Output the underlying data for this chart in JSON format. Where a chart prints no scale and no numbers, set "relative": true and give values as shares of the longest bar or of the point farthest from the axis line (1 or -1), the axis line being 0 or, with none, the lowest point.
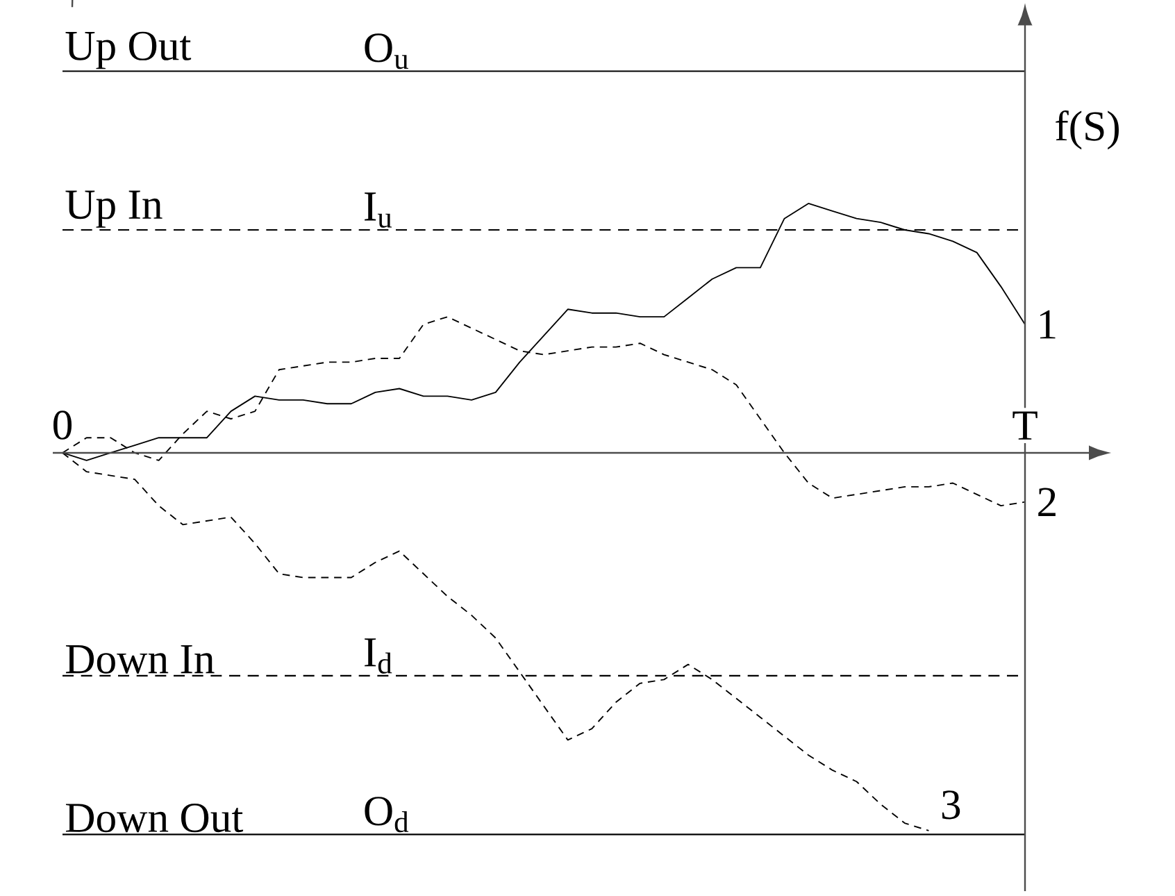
{
  "chart_data": {
    "type": "line",
    "relative": true,
    "ylabel": "f(S)",
    "grid": false,
    "legend": false,
    "marker": "none",
    "categories": [
      "0",
      null,
      null,
      null,
      null,
      null,
      null,
      null,
      null,
      null,
      null,
      null,
      null,
      null,
      null,
      null,
      null,
      null,
      null,
      null,
      null,
      null,
      null,
      null,
      null,
      null,
      null,
      null,
      null,
      null,
      null,
      null,
      null,
      null,
      null,
      null,
      null,
      null,
      null,
      null,
      "T"
    ],
    "series": [
      {
        "name": "1",
        "color": "#000000",
        "line_style": "solid",
        "values": [
          0,
          -0.02,
          0.0,
          0.02,
          0.04,
          0.04,
          0.04,
          0.11,
          0.15,
          0.14,
          0.14,
          0.13,
          0.13,
          0.16,
          0.17,
          0.15,
          0.15,
          0.14,
          0.16,
          0.24,
          0.31,
          0.38,
          0.37,
          0.37,
          0.36,
          0.36,
          0.41,
          0.46,
          0.49,
          0.49,
          0.62,
          0.66,
          0.64,
          0.62,
          0.61,
          0.59,
          0.58,
          0.56,
          0.53,
          0.44,
          0.34
        ]
      },
      {
        "name": "2",
        "color": "#000000",
        "line_style": "dashed",
        "values": [
          0,
          0.04,
          0.04,
          0.0,
          -0.02,
          0.05,
          0.11,
          0.09,
          0.11,
          0.22,
          0.23,
          0.24,
          0.24,
          0.25,
          0.25,
          0.34,
          0.36,
          0.33,
          0.3,
          0.27,
          0.26,
          0.27,
          0.28,
          0.28,
          0.29,
          0.26,
          0.24,
          0.22,
          0.18,
          0.09,
          0.0,
          -0.08,
          -0.12,
          -0.11,
          -0.1,
          -0.09,
          -0.09,
          -0.08,
          -0.11,
          -0.14,
          -0.13
        ]
      },
      {
        "name": "3",
        "color": "#000000",
        "line_style": "dashed",
        "values": [
          0,
          -0.05,
          -0.06,
          -0.07,
          -0.14,
          -0.19,
          -0.18,
          -0.17,
          -0.24,
          -0.32,
          -0.33,
          -0.33,
          -0.33,
          -0.29,
          -0.26,
          -0.32,
          -0.38,
          -0.43,
          -0.49,
          -0.58,
          -0.67,
          -0.76,
          -0.73,
          -0.66,
          -0.61,
          -0.6,
          -0.56,
          -0.6,
          -0.65,
          -0.7,
          -0.75,
          -0.8,
          -0.84,
          -0.87,
          -0.93,
          -0.98,
          -1,
          null,
          null,
          null,
          null
        ]
      }
    ],
    "ref_lines": [
      {
        "axis": "y",
        "value": 1.01,
        "label": "Up Out",
        "line_style": "solid",
        "color": "#000000"
      },
      {
        "axis": "y",
        "value": 0.59,
        "label": "Up In",
        "line_style": "dashed",
        "color": "#000000"
      },
      {
        "axis": "y",
        "value": -0.59,
        "label": "Down In",
        "line_style": "dashed",
        "color": "#000000"
      },
      {
        "axis": "y",
        "value": -1.01,
        "label": "Down Out",
        "line_style": "solid",
        "color": "#000000"
      }
    ],
    "annotations": [
      {
        "text": "O$_{u}$",
        "y": 1.01
      },
      {
        "text": "I$_{u}$",
        "y": 0.59
      },
      {
        "text": "I$_{d}$",
        "y": -0.59
      },
      {
        "text": "O$_{d}$",
        "y": -1.01
      }
    ]
  }
}
